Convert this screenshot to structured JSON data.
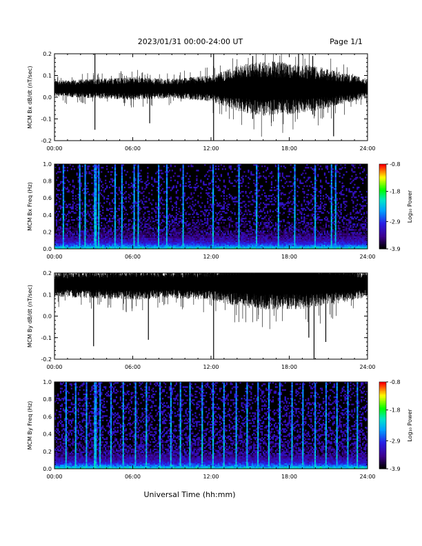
{
  "header": {
    "title": "2023/01/31  00:00-24:00 UT",
    "page_label": "Page 1/1"
  },
  "footer": {
    "xlabel": "Universal Time (hh:mm)"
  },
  "chart_data": [
    {
      "type": "line",
      "ylabel": "MCM Bx dB/dt (nT/sec)",
      "x_ticks": [
        "00:00",
        "06:00",
        "12:00",
        "18:00",
        "24:00"
      ],
      "xlim_hours": [
        0,
        24
      ],
      "ylim": [
        -0.2,
        0.2
      ],
      "y_ticks": [
        "0.2",
        "0.1",
        "0.0",
        "-0.1",
        "-0.2"
      ],
      "y_tick_values": [
        0.2,
        0.1,
        0.0,
        -0.1,
        -0.2
      ],
      "baseline": 0.04,
      "noise_profile": {
        "hours": [
          0,
          3,
          6,
          9,
          12,
          14,
          16,
          18,
          20,
          22,
          24
        ],
        "amplitude": [
          0.025,
          0.03,
          0.035,
          0.03,
          0.04,
          0.07,
          0.085,
          0.08,
          0.07,
          0.05,
          0.03
        ]
      },
      "spikes": [
        {
          "t": 3.1,
          "min": -0.15,
          "max": 0.2
        },
        {
          "t": 7.3,
          "min": -0.12,
          "max": 0.08
        },
        {
          "t": 12.2,
          "min": -0.2,
          "max": 0.2
        },
        {
          "t": 15.2,
          "min": -0.1,
          "max": 0.19
        },
        {
          "t": 19.8,
          "min": -0.08,
          "max": 0.19
        },
        {
          "t": 21.4,
          "min": -0.18,
          "max": 0.12
        }
      ]
    },
    {
      "type": "heatmap",
      "ylabel": "MCM Bx Freq (Hz)",
      "x_ticks": [
        "00:00",
        "06:00",
        "12:00",
        "18:00",
        "24:00"
      ],
      "xlim_hours": [
        0,
        24
      ],
      "ylim": [
        0.0,
        1.0
      ],
      "y_ticks": [
        "1.0",
        "0.8",
        "0.6",
        "0.4",
        "0.2",
        "0.0"
      ],
      "y_tick_values": [
        1.0,
        0.8,
        0.6,
        0.4,
        0.2,
        0.0
      ],
      "colorbar": {
        "label": "Log₁₀ Power",
        "ticks": [
          "-0.8",
          "-1.8",
          "-2.9",
          "-3.9"
        ],
        "tick_values": [
          -0.8,
          -1.8,
          -2.9,
          -3.9
        ],
        "range": [
          -3.9,
          -0.8
        ]
      },
      "density": 0.55,
      "stripes_hours": [
        0.6,
        1.9,
        2.3,
        3.0,
        3.15,
        3.4,
        4.6,
        5.1,
        6.1,
        6.4,
        8.0,
        8.6,
        9.9,
        12.2,
        14.1,
        15.5,
        17.2,
        18.4,
        20.0,
        21.3,
        21.6
      ]
    },
    {
      "type": "line",
      "ylabel": "MCM By dB/dt (nT/sec)",
      "x_ticks": [
        "00:00",
        "06:00",
        "12:00",
        "18:00",
        "24:00"
      ],
      "xlim_hours": [
        0,
        24
      ],
      "ylim": [
        -0.2,
        0.2
      ],
      "y_ticks": [
        "0.2",
        "0.1",
        "0.0",
        "-0.1",
        "-0.2"
      ],
      "y_tick_values": [
        0.2,
        0.1,
        0.0,
        -0.1,
        -0.2
      ],
      "baseline": 0.15,
      "noise_profile": {
        "hours": [
          0,
          3,
          6,
          9,
          12,
          14,
          16,
          18,
          20,
          22,
          24
        ],
        "amplitude": [
          0.04,
          0.045,
          0.05,
          0.045,
          0.05,
          0.07,
          0.08,
          0.08,
          0.075,
          0.06,
          0.04
        ]
      },
      "spikes": [
        {
          "t": 3.0,
          "min": -0.14,
          "max": 0.2
        },
        {
          "t": 7.2,
          "min": -0.11,
          "max": 0.2
        },
        {
          "t": 12.2,
          "min": -0.2,
          "max": 0.2
        },
        {
          "t": 19.5,
          "min": -0.1,
          "max": 0.2
        },
        {
          "t": 19.9,
          "min": -0.2,
          "max": 0.2
        },
        {
          "t": 20.8,
          "min": -0.12,
          "max": 0.2
        }
      ]
    },
    {
      "type": "heatmap",
      "ylabel": "MCM By Freq (Hz)",
      "x_ticks": [
        "00:00",
        "06:00",
        "12:00",
        "18:00",
        "24:00"
      ],
      "xlim_hours": [
        0,
        24
      ],
      "ylim": [
        0.0,
        1.0
      ],
      "y_ticks": [
        "1.0",
        "0.8",
        "0.6",
        "0.4",
        "0.2",
        "0.0"
      ],
      "y_tick_values": [
        1.0,
        0.8,
        0.6,
        0.4,
        0.2,
        0.0
      ],
      "colorbar": {
        "label": "Log₁₀ Power",
        "ticks": [
          "-0.8",
          "-1.8",
          "-2.9",
          "-3.9"
        ],
        "tick_values": [
          -0.8,
          -1.8,
          -2.9,
          -3.9
        ],
        "range": [
          -3.9,
          -0.8
        ]
      },
      "density": 0.85,
      "stripes_hours": [
        0.8,
        1.6,
        2.4,
        3.0,
        3.15,
        3.5,
        4.3,
        5.2,
        6.2,
        7.0,
        8.1,
        8.9,
        9.6,
        10.4,
        11.3,
        12.2,
        13.0,
        13.9,
        14.8,
        15.6,
        16.5,
        17.3,
        18.2,
        19.1,
        20.0,
        20.9,
        21.7,
        22.5,
        23.3
      ]
    }
  ]
}
